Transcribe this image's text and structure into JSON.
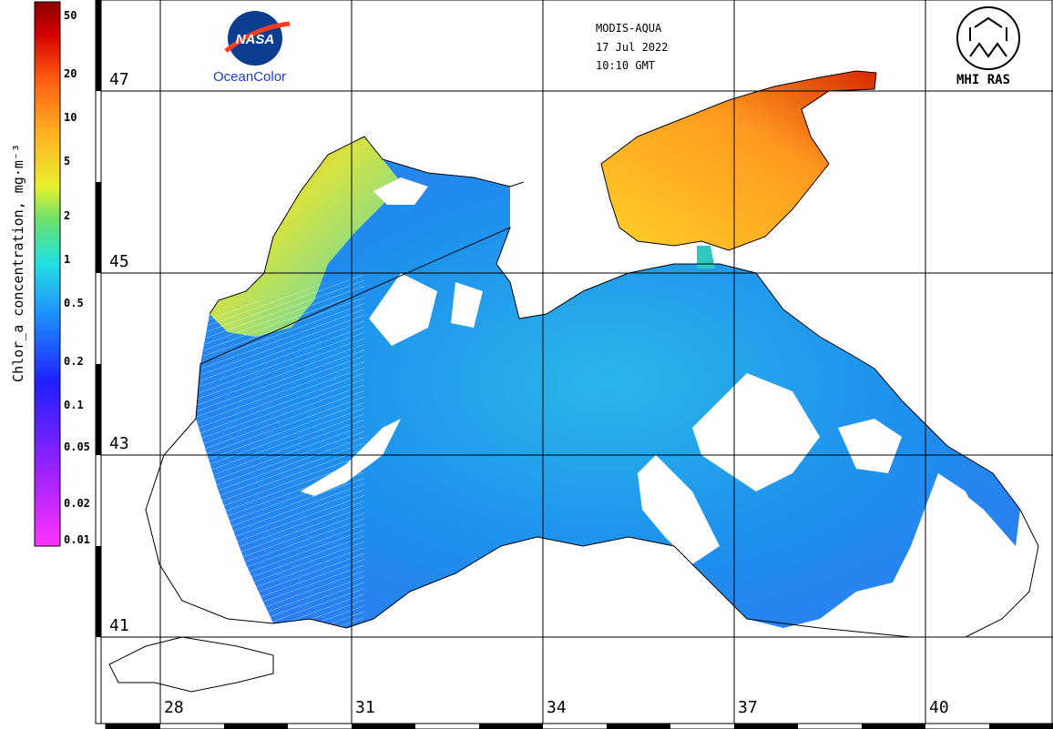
{
  "header": {
    "sensor": "MODIS-AQUA",
    "date": "17 Jul 2022",
    "time": "10:10 GMT"
  },
  "logos": {
    "nasa_word": "NASA",
    "oceancolor": "OceanColor",
    "mhi": "MHI RAS"
  },
  "colorbar": {
    "label": "Chlor_a concentration, mg·m⁻³",
    "ticks": [
      "50",
      "20",
      "10",
      "5",
      "2",
      "1",
      "0.5",
      "0.2",
      "0.1",
      "0.05",
      "0.02",
      "0.01"
    ],
    "scale": "log",
    "colors": [
      "#ff33ff",
      "#9a22ff",
      "#2020ff",
      "#1e8cff",
      "#21e0e0",
      "#6be06b",
      "#e8f030",
      "#ffb020",
      "#ff5a10",
      "#d40000",
      "#8a0000"
    ]
  },
  "latitudes": [
    "47",
    "45",
    "43",
    "41"
  ],
  "longitudes": [
    "28",
    "31",
    "34",
    "37",
    "40"
  ]
}
